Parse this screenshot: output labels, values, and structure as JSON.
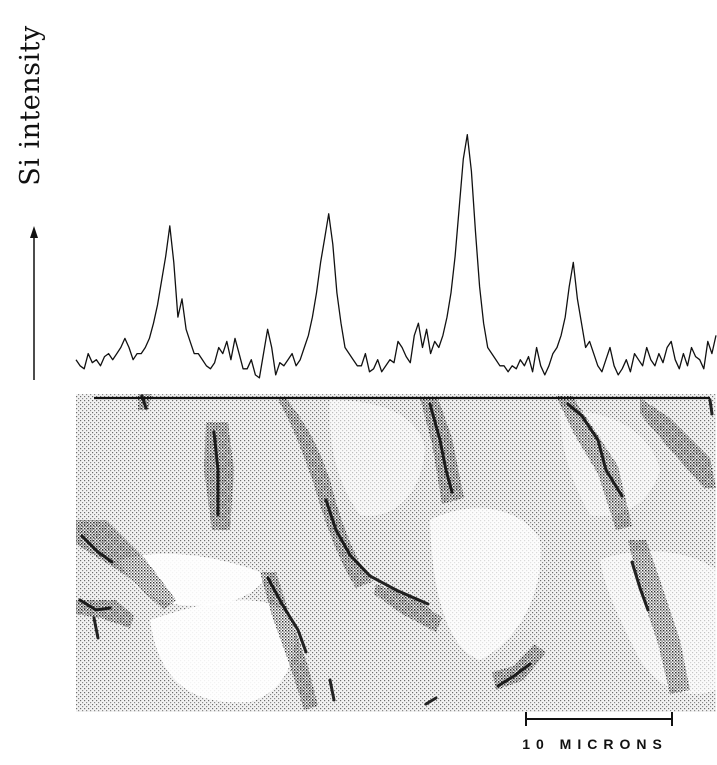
{
  "figure": {
    "y_axis_label": "Si intensity",
    "scale_bar_label": "10 MICRONS"
  },
  "chart_data": {
    "type": "line",
    "title": "",
    "xlabel": "",
    "ylabel": "Si intensity",
    "grid": false,
    "series": [
      {
        "values": [
          0.08,
          0.06,
          0.05,
          0.1,
          0.07,
          0.08,
          0.06,
          0.09,
          0.1,
          0.08,
          0.1,
          0.12,
          0.15,
          0.12,
          0.08,
          0.1,
          0.1,
          0.12,
          0.15,
          0.2,
          0.26,
          0.34,
          0.42,
          0.52,
          0.4,
          0.22,
          0.28,
          0.18,
          0.14,
          0.1,
          0.1,
          0.08,
          0.06,
          0.05,
          0.07,
          0.12,
          0.1,
          0.14,
          0.08,
          0.15,
          0.1,
          0.05,
          0.05,
          0.08,
          0.03,
          0.02,
          0.1,
          0.18,
          0.12,
          0.03,
          0.07,
          0.06,
          0.08,
          0.1,
          0.06,
          0.08,
          0.12,
          0.16,
          0.22,
          0.3,
          0.4,
          0.48,
          0.56,
          0.46,
          0.3,
          0.2,
          0.12,
          0.1,
          0.08,
          0.06,
          0.06,
          0.1,
          0.04,
          0.05,
          0.08,
          0.04,
          0.06,
          0.08,
          0.07,
          0.14,
          0.12,
          0.09,
          0.07,
          0.16,
          0.2,
          0.12,
          0.18,
          0.1,
          0.14,
          0.12,
          0.16,
          0.22,
          0.3,
          0.42,
          0.58,
          0.74,
          0.82,
          0.7,
          0.5,
          0.32,
          0.2,
          0.12,
          0.1,
          0.08,
          0.06,
          0.06,
          0.04,
          0.06,
          0.05,
          0.08,
          0.06,
          0.09,
          0.04,
          0.12,
          0.06,
          0.03,
          0.06,
          0.1,
          0.12,
          0.16,
          0.22,
          0.32,
          0.4,
          0.28,
          0.2,
          0.12,
          0.14,
          0.1,
          0.06,
          0.04,
          0.08,
          0.12,
          0.06,
          0.03,
          0.05,
          0.08,
          0.04,
          0.1,
          0.08,
          0.06,
          0.12,
          0.08,
          0.06,
          0.1,
          0.07,
          0.12,
          0.14,
          0.08,
          0.05,
          0.1,
          0.06,
          0.12,
          0.09,
          0.08,
          0.05,
          0.14,
          0.1,
          0.16
        ]
      }
    ],
    "annotations": [
      "10 MICRONS"
    ]
  }
}
